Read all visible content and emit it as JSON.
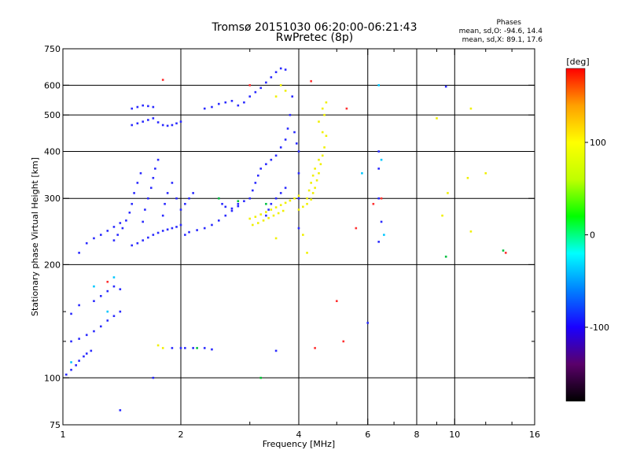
{
  "chart_data": {
    "type": "scatter",
    "title": "Tromsø 20151030 06:20:00-06:21:43",
    "subtitle": "RwPretec (8p)",
    "xlabel": "Frequency [MHz]",
    "ylabel": "Stationary phase Virtual Height [km]",
    "xscale": "log",
    "yscale": "log",
    "xlim": [
      1,
      16
    ],
    "ylim": [
      75,
      750
    ],
    "x_ticks": [
      {
        "value": 1,
        "label": "1"
      },
      {
        "value": 2,
        "label": "2"
      },
      {
        "value": 4,
        "label": "4"
      },
      {
        "value": 6,
        "label": "6"
      },
      {
        "value": 8,
        "label": "8"
      },
      {
        "value": 10,
        "label": "10"
      },
      {
        "value": 16,
        "label": "16"
      }
    ],
    "x_minor_ticks": [
      3,
      5,
      7,
      9,
      12,
      14
    ],
    "x_grid": [
      2,
      4,
      6,
      8,
      10
    ],
    "y_ticks": [
      {
        "value": 75,
        "label": "75"
      },
      {
        "value": 100,
        "label": "100"
      },
      {
        "value": 200,
        "label": "200"
      },
      {
        "value": 300,
        "label": "300"
      },
      {
        "value": 400,
        "label": "400"
      },
      {
        "value": 500,
        "label": "500"
      },
      {
        "value": 600,
        "label": "600"
      },
      {
        "value": 750,
        "label": "750"
      }
    ],
    "y_minor_ticks": [
      125,
      150
    ],
    "y_grid": [
      100,
      200,
      300,
      400,
      500,
      600
    ],
    "grid": true,
    "stats": {
      "heading": "Phases",
      "o_mode": "mean, sd,O:  -94.6, 14.4",
      "x_mode": "mean, sd,X:  89.1, 17.6"
    },
    "colorbar": {
      "label": "[deg]",
      "range": [
        -180,
        180
      ],
      "ticks": [
        {
          "value": 100,
          "label": "100"
        },
        {
          "value": 0,
          "label": "0"
        },
        {
          "value": -100,
          "label": "-100"
        }
      ],
      "stops": [
        "#000000",
        "#5a006a",
        "#1a00ff",
        "#0080ff",
        "#00ffff",
        "#00ff00",
        "#c0ff00",
        "#ffff00",
        "#ffa000",
        "#ff0000"
      ]
    },
    "series": [
      {
        "mode": "O",
        "phase_deg": -95,
        "color": "#2a2aff",
        "points": [
          [
            1.02,
            102
          ],
          [
            1.05,
            105
          ],
          [
            1.08,
            108
          ],
          [
            1.1,
            111
          ],
          [
            1.13,
            114
          ],
          [
            1.15,
            116
          ],
          [
            1.18,
            118
          ],
          [
            1.05,
            125
          ],
          [
            1.1,
            127
          ],
          [
            1.15,
            130
          ],
          [
            1.2,
            133
          ],
          [
            1.25,
            137
          ],
          [
            1.3,
            142
          ],
          [
            1.35,
            146
          ],
          [
            1.4,
            150
          ],
          [
            1.05,
            148
          ],
          [
            1.1,
            156
          ],
          [
            1.2,
            160
          ],
          [
            1.25,
            165
          ],
          [
            1.3,
            170
          ],
          [
            1.35,
            175
          ],
          [
            1.4,
            172
          ],
          [
            1.1,
            215
          ],
          [
            1.15,
            228
          ],
          [
            1.2,
            235
          ],
          [
            1.25,
            240
          ],
          [
            1.3,
            246
          ],
          [
            1.35,
            252
          ],
          [
            1.4,
            258
          ],
          [
            1.35,
            232
          ],
          [
            1.38,
            240
          ],
          [
            1.42,
            250
          ],
          [
            1.45,
            262
          ],
          [
            1.48,
            275
          ],
          [
            1.5,
            290
          ],
          [
            1.52,
            310
          ],
          [
            1.55,
            330
          ],
          [
            1.58,
            350
          ],
          [
            1.5,
            225
          ],
          [
            1.55,
            228
          ],
          [
            1.6,
            232
          ],
          [
            1.65,
            236
          ],
          [
            1.7,
            240
          ],
          [
            1.75,
            243
          ],
          [
            1.8,
            246
          ],
          [
            1.85,
            248
          ],
          [
            1.9,
            250
          ],
          [
            1.95,
            252
          ],
          [
            2.0,
            255
          ],
          [
            1.6,
            260
          ],
          [
            1.62,
            280
          ],
          [
            1.65,
            300
          ],
          [
            1.68,
            320
          ],
          [
            1.7,
            340
          ],
          [
            1.72,
            360
          ],
          [
            1.75,
            380
          ],
          [
            1.8,
            270
          ],
          [
            1.82,
            290
          ],
          [
            1.85,
            310
          ],
          [
            1.9,
            330
          ],
          [
            1.95,
            300
          ],
          [
            2.0,
            280
          ],
          [
            2.05,
            290
          ],
          [
            2.1,
            300
          ],
          [
            2.15,
            310
          ],
          [
            2.05,
            240
          ],
          [
            2.1,
            244
          ],
          [
            2.2,
            247
          ],
          [
            2.3,
            250
          ],
          [
            2.4,
            255
          ],
          [
            2.5,
            262
          ],
          [
            2.6,
            270
          ],
          [
            2.7,
            278
          ],
          [
            2.8,
            286
          ],
          [
            2.5,
            300
          ],
          [
            2.55,
            290
          ],
          [
            2.6,
            285
          ],
          [
            2.7,
            282
          ],
          [
            2.8,
            290
          ],
          [
            2.9,
            295
          ],
          [
            3.0,
            300
          ],
          [
            3.05,
            315
          ],
          [
            3.1,
            330
          ],
          [
            3.15,
            345
          ],
          [
            3.2,
            360
          ],
          [
            3.3,
            370
          ],
          [
            3.4,
            380
          ],
          [
            3.5,
            390
          ],
          [
            3.6,
            410
          ],
          [
            3.7,
            430
          ],
          [
            3.75,
            460
          ],
          [
            3.8,
            500
          ],
          [
            3.85,
            560
          ],
          [
            3.3,
            270
          ],
          [
            3.35,
            280
          ],
          [
            3.4,
            290
          ],
          [
            3.5,
            300
          ],
          [
            3.6,
            310
          ],
          [
            3.7,
            320
          ],
          [
            1.5,
            470
          ],
          [
            1.55,
            475
          ],
          [
            1.6,
            480
          ],
          [
            1.65,
            485
          ],
          [
            1.7,
            490
          ],
          [
            1.75,
            478
          ],
          [
            1.8,
            470
          ],
          [
            1.85,
            468
          ],
          [
            1.9,
            470
          ],
          [
            1.95,
            475
          ],
          [
            2.0,
            480
          ],
          [
            1.5,
            520
          ],
          [
            1.55,
            525
          ],
          [
            1.6,
            530
          ],
          [
            1.65,
            528
          ],
          [
            1.7,
            525
          ],
          [
            2.3,
            520
          ],
          [
            2.4,
            525
          ],
          [
            2.5,
            535
          ],
          [
            2.6,
            540
          ],
          [
            2.7,
            545
          ],
          [
            2.8,
            530
          ],
          [
            2.9,
            540
          ],
          [
            3.0,
            560
          ],
          [
            3.1,
            575
          ],
          [
            3.2,
            590
          ],
          [
            3.3,
            610
          ],
          [
            3.4,
            630
          ],
          [
            3.5,
            650
          ],
          [
            3.6,
            665
          ],
          [
            3.7,
            660
          ],
          [
            3.9,
            450
          ],
          [
            3.95,
            420
          ],
          [
            4.0,
            400
          ],
          [
            4.0,
            350
          ],
          [
            4.0,
            300
          ],
          [
            4.0,
            250
          ],
          [
            1.9,
            120
          ],
          [
            2.0,
            120
          ],
          [
            2.05,
            120
          ],
          [
            2.15,
            120
          ],
          [
            2.3,
            120
          ],
          [
            2.4,
            119
          ],
          [
            3.5,
            118
          ],
          [
            1.7,
            100
          ],
          [
            1.4,
            82
          ],
          [
            6.4,
            400
          ],
          [
            6.4,
            360
          ],
          [
            6.4,
            300
          ],
          [
            6.5,
            260
          ],
          [
            6.4,
            230
          ],
          [
            9.5,
            595
          ],
          [
            6.0,
            140
          ]
        ]
      },
      {
        "mode": "X",
        "phase_deg": 95,
        "color": "#f0f000",
        "points": [
          [
            3.0,
            265
          ],
          [
            3.1,
            268
          ],
          [
            3.2,
            272
          ],
          [
            3.3,
            276
          ],
          [
            3.4,
            280
          ],
          [
            3.5,
            284
          ],
          [
            3.6,
            288
          ],
          [
            3.7,
            292
          ],
          [
            3.8,
            296
          ],
          [
            3.9,
            300
          ],
          [
            4.0,
            305
          ],
          [
            3.05,
            255
          ],
          [
            3.15,
            258
          ],
          [
            3.25,
            262
          ],
          [
            3.35,
            266
          ],
          [
            3.45,
            270
          ],
          [
            3.55,
            274
          ],
          [
            3.65,
            278
          ],
          [
            4.0,
            280
          ],
          [
            4.1,
            285
          ],
          [
            4.2,
            290
          ],
          [
            4.3,
            298
          ],
          [
            4.35,
            310
          ],
          [
            4.4,
            320
          ],
          [
            4.45,
            335
          ],
          [
            4.5,
            350
          ],
          [
            4.55,
            370
          ],
          [
            4.6,
            390
          ],
          [
            4.65,
            410
          ],
          [
            4.7,
            440
          ],
          [
            4.2,
            300
          ],
          [
            4.25,
            315
          ],
          [
            4.3,
            330
          ],
          [
            4.35,
            345
          ],
          [
            4.4,
            360
          ],
          [
            4.5,
            380
          ],
          [
            4.6,
            450
          ],
          [
            4.65,
            500
          ],
          [
            4.7,
            540
          ],
          [
            4.6,
            520
          ],
          [
            4.5,
            480
          ],
          [
            3.6,
            600
          ],
          [
            3.7,
            580
          ],
          [
            3.5,
            560
          ],
          [
            1.8,
            120
          ],
          [
            1.75,
            122
          ],
          [
            3.2,
            100
          ],
          [
            9.0,
            490
          ],
          [
            9.6,
            310
          ],
          [
            9.3,
            270
          ],
          [
            11.0,
            520
          ],
          [
            11.0,
            245
          ],
          [
            12.0,
            350
          ],
          [
            10.8,
            340
          ],
          [
            4.1,
            240
          ],
          [
            4.2,
            215
          ],
          [
            3.5,
            235
          ]
        ]
      },
      {
        "mode": "other",
        "phase_deg": 170,
        "color": "#ff3030",
        "points": [
          [
            1.8,
            620
          ],
          [
            4.3,
            615
          ],
          [
            5.3,
            520
          ],
          [
            5.6,
            250
          ],
          [
            5.2,
            125
          ],
          [
            5.0,
            160
          ],
          [
            6.2,
            290
          ],
          [
            6.5,
            300
          ],
          [
            13.5,
            215
          ],
          [
            1.3,
            180
          ],
          [
            3.0,
            600
          ],
          [
            4.4,
            120
          ]
        ]
      },
      {
        "mode": "other",
        "phase_deg": -10,
        "color": "#00c040",
        "points": [
          [
            2.5,
            300
          ],
          [
            2.8,
            295
          ],
          [
            3.2,
            100
          ],
          [
            3.3,
            290
          ],
          [
            9.5,
            210
          ],
          [
            2.2,
            120
          ],
          [
            13.3,
            218
          ]
        ]
      },
      {
        "mode": "other",
        "phase_deg": -45,
        "color": "#00c8ff",
        "points": [
          [
            1.3,
            150
          ],
          [
            1.2,
            175
          ],
          [
            1.35,
            185
          ],
          [
            6.5,
            380
          ],
          [
            6.6,
            240
          ],
          [
            5.8,
            350
          ],
          [
            1.05,
            110
          ],
          [
            6.4,
            600
          ]
        ]
      }
    ]
  }
}
